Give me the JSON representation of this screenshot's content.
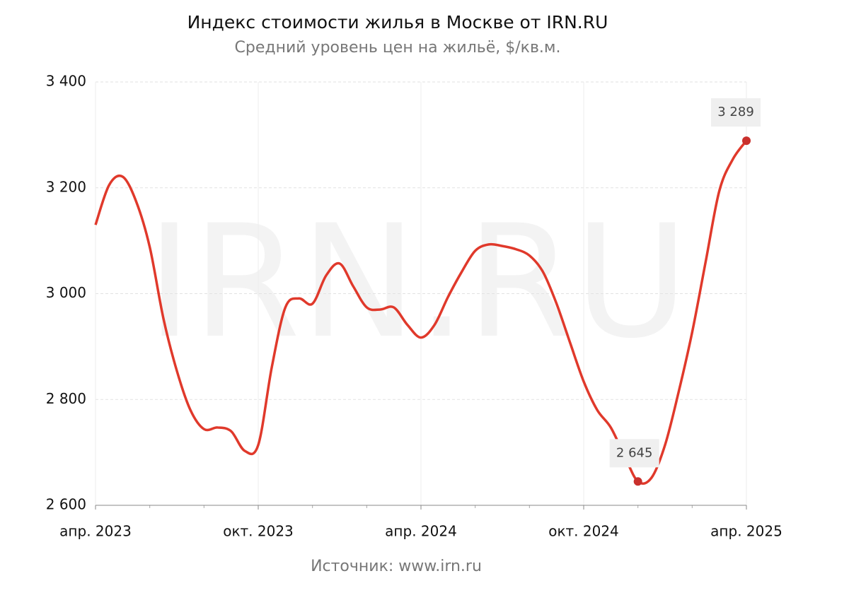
{
  "chart_data": {
    "type": "line",
    "title": "Индекс стоимости жилья в Москве от IRN.RU",
    "subtitle": "Средний уровень цен на жильё, $/кв.м.",
    "source": "Источник: www.irn.ru",
    "watermark": "IRN.RU",
    "categories": [
      "апр. 2023",
      null,
      null,
      null,
      null,
      null,
      null,
      null,
      null,
      null,
      null,
      null,
      "окт. 2023",
      null,
      null,
      null,
      null,
      null,
      null,
      null,
      null,
      null,
      null,
      null,
      "апр. 2024",
      null,
      null,
      null,
      null,
      null,
      null,
      null,
      null,
      null,
      null,
      null,
      "окт. 2024",
      null,
      null,
      null,
      null,
      null,
      null,
      null,
      null,
      null,
      null,
      null,
      "апр. 2025"
    ],
    "series": [
      {
        "color": "#e0392b",
        "values": [
          3130,
          3205,
          3221,
          3174,
          3088,
          2954,
          2854,
          2780,
          2744,
          2747,
          2740,
          2703,
          2714,
          2861,
          2974,
          2991,
          2981,
          3034,
          3057,
          3014,
          2974,
          2970,
          2974,
          2941,
          2917,
          2941,
          2994,
          3041,
          3081,
          3093,
          3090,
          3084,
          3072,
          3041,
          2981,
          2907,
          2834,
          2780,
          2747,
          2694,
          2645,
          2652,
          2714,
          2814,
          2927,
          3061,
          3194,
          3254,
          3289
        ],
        "value_labels": [
          null,
          null,
          null,
          null,
          null,
          null,
          null,
          null,
          null,
          null,
          null,
          null,
          null,
          null,
          null,
          null,
          null,
          null,
          null,
          null,
          null,
          null,
          null,
          null,
          null,
          null,
          null,
          null,
          null,
          null,
          null,
          null,
          null,
          null,
          null,
          null,
          null,
          null,
          null,
          null,
          "2 645",
          null,
          null,
          null,
          null,
          null,
          null,
          null,
          "3 289"
        ]
      }
    ],
    "ylim": [
      2600,
      3400
    ],
    "yticks": [
      {
        "value": 2600,
        "label": "2 600"
      },
      {
        "value": 2800,
        "label": "2 800"
      },
      {
        "value": 3000,
        "label": "3 000"
      },
      {
        "value": 3200,
        "label": "3 200"
      },
      {
        "value": 3400,
        "label": "3 400"
      }
    ],
    "grid": true
  }
}
